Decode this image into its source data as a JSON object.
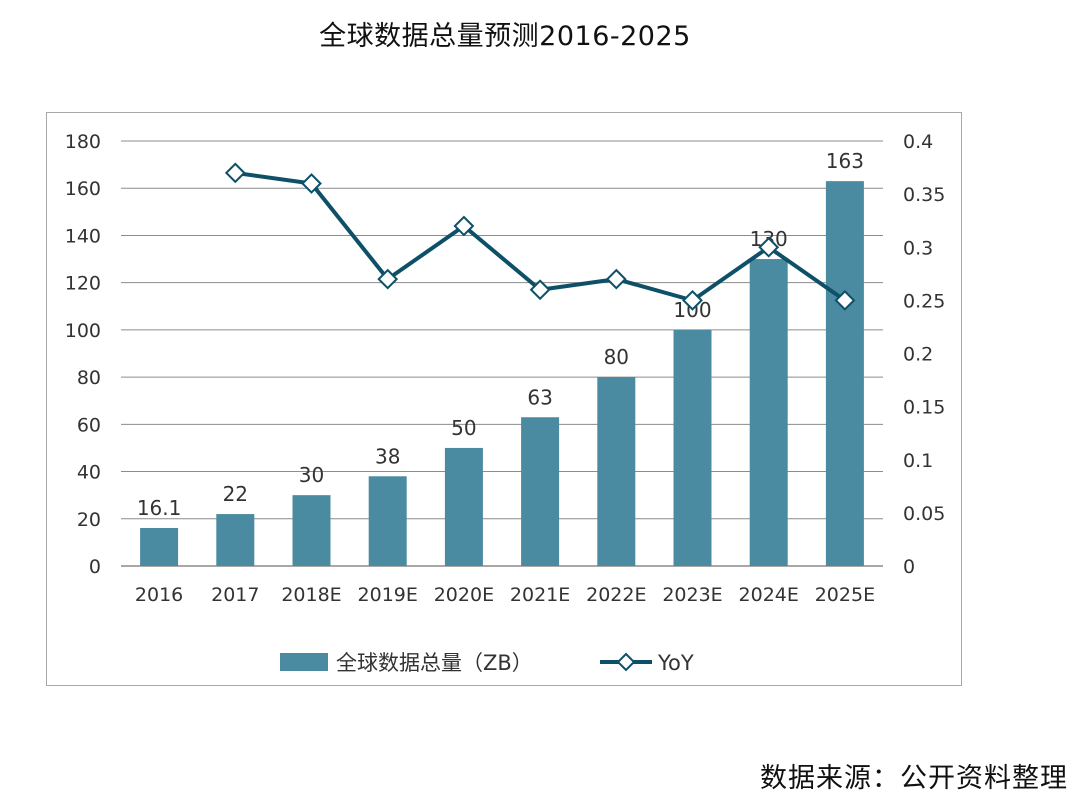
{
  "chart_data": {
    "type": "bar",
    "title": "全球数据总量预测2016-2025",
    "categories": [
      "2016",
      "2017",
      "2018E",
      "2019E",
      "2020E",
      "2021E",
      "2022E",
      "2023E",
      "2024E",
      "2025E"
    ],
    "series": [
      {
        "name": "全球数据总量（ZB）",
        "type": "bar",
        "axis": "left",
        "values": [
          16.1,
          22,
          30,
          38,
          50,
          63,
          80,
          100,
          130,
          163
        ],
        "labels": [
          "16.1",
          "22",
          "30",
          "38",
          "50",
          "63",
          "80",
          "100",
          "130",
          "163"
        ]
      },
      {
        "name": "YoY",
        "type": "line",
        "axis": "right",
        "values": [
          null,
          0.37,
          0.36,
          0.27,
          0.32,
          0.26,
          0.27,
          0.25,
          0.3,
          0.25
        ]
      }
    ],
    "y_left": {
      "min": 0,
      "max": 180,
      "ticks": [
        "0",
        "20",
        "40",
        "60",
        "80",
        "100",
        "120",
        "140",
        "160",
        "180"
      ]
    },
    "y_right": {
      "min": 0,
      "max": 0.4,
      "ticks": [
        "0",
        "0.05",
        "0.1",
        "0.15",
        "0.2",
        "0.25",
        "0.3",
        "0.35",
        "0.4"
      ]
    },
    "legend": {
      "position": "bottom",
      "bar_label": "全球数据总量（ZB）",
      "line_label": "YoY"
    },
    "grid": true,
    "colors": {
      "bar": "#4b8ba1",
      "line": "#0d5068",
      "grid": "#8c8c8c",
      "text": "#333333"
    }
  },
  "source_text": "数据来源：公开资料整理"
}
